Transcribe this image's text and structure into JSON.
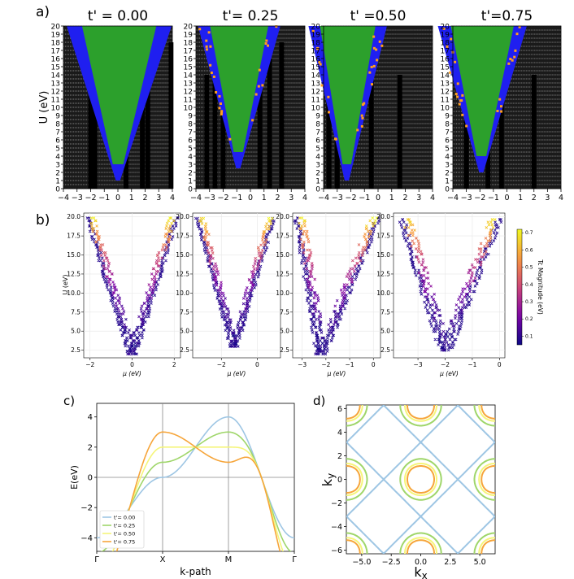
{
  "panel_labels": {
    "a": "a)",
    "b": "b)",
    "c": "c)",
    "d": "d)"
  },
  "colors": {
    "a_background": "#1a1a1a",
    "a_dot": "#8c8c8c",
    "a_green": "#2ca02c",
    "a_blue": "#1f1ff0",
    "a_orange": "#ff9f1c",
    "a_black": "#000000",
    "band_00": "#9ec6e4",
    "band_25": "#9fd66a",
    "band_50": "#f5f57a",
    "band_75": "#f6a53a"
  },
  "chart_data": [
    {
      "id": "a",
      "type": "heatmap",
      "ylabel": "U (eV)",
      "x_ticks": [
        "−4",
        "−3",
        "−2",
        "−1",
        "0",
        "1",
        "2",
        "3",
        "4"
      ],
      "y_ticks": [
        "0",
        "1",
        "2",
        "3",
        "4",
        "5",
        "6",
        "7",
        "8",
        "9",
        "10",
        "11",
        "12",
        "13",
        "14",
        "15",
        "16",
        "17",
        "18",
        "19",
        "20"
      ],
      "xlim": [
        -4,
        4
      ],
      "ylim": [
        0,
        20
      ],
      "subplots": [
        {
          "title": "t' = 0.00",
          "tprime": 0.0,
          "center": 0.0,
          "slope": 0.19,
          "u0": 1.0,
          "black_cols": [
            -2.0,
            -1.7,
            0.6,
            1.8,
            2.2,
            3.9
          ]
        },
        {
          "title": "t'= 0.25",
          "tprime": 0.25,
          "center": -0.9,
          "slope": 0.16,
          "u0": 2.5,
          "black_cols": [
            -3.2,
            -2.6,
            -2.0,
            0.7,
            1.4,
            2.3
          ]
        },
        {
          "title": "t' =0.50",
          "tprime": 0.5,
          "center": -2.3,
          "slope": 0.14,
          "u0": 1.0,
          "black_cols": [
            -3.6,
            -3.0,
            -0.5,
            1.6
          ]
        },
        {
          "title": "t'=0.75",
          "tprime": 0.75,
          "center": -1.9,
          "slope": 0.17,
          "u0": 2.0,
          "black_cols": [
            -3.0,
            -1.4,
            -0.4,
            2.0
          ]
        }
      ]
    },
    {
      "id": "b",
      "type": "scatter",
      "ylabel": "U (eV)",
      "xlabel": "μ (eV)",
      "colorbar_label": "Tc Magnitude (eV)",
      "colorbar_ticks": [
        "0.1",
        "0.2",
        "0.3",
        "0.4",
        "0.5",
        "0.6",
        "0.7"
      ],
      "colorbar_range": [
        0.05,
        0.72
      ],
      "y_ticks": [
        "2.5",
        "5.0",
        "7.5",
        "10.0",
        "12.5",
        "15.0",
        "17.5",
        "20.0"
      ],
      "ylim": [
        1.5,
        20.5
      ],
      "subplots": [
        {
          "xlim": [
            -2.3,
            2.3
          ],
          "x_ticks": [
            -2,
            0,
            2
          ],
          "x_tick_labels": [
            "−2",
            "0",
            "2"
          ],
          "left_min": -2.0,
          "right_max": 2.0,
          "center": 0.0,
          "u_min": 2.0
        },
        {
          "xlim": [
            -3.6,
            1.3
          ],
          "x_ticks": [
            -2,
            0
          ],
          "x_tick_labels": [
            "−2",
            "0"
          ],
          "left_min": -3.2,
          "right_max": 0.8,
          "center": -1.3,
          "u_min": 3.0
        },
        {
          "xlim": [
            -3.4,
            0.3
          ],
          "x_ticks": [
            -3,
            -2,
            -1,
            0
          ],
          "x_tick_labels": [
            "−3",
            "−2",
            "−1",
            "0"
          ],
          "left_min": -3.1,
          "right_max": 0.1,
          "center": -2.2,
          "u_min": 2.0
        },
        {
          "xlim": [
            -3.9,
            0.2
          ],
          "x_ticks": [
            -3,
            -2,
            -1,
            0
          ],
          "x_tick_labels": [
            "−3",
            "−2",
            "−1",
            "0"
          ],
          "left_min": -3.5,
          "right_max": -0.1,
          "center": -2.0,
          "u_min": 2.5
        }
      ]
    },
    {
      "id": "c",
      "type": "line",
      "ylabel": "E(eV)",
      "xlabel": "k-path",
      "x_tick_labels": [
        "Γ",
        "X",
        "M",
        "Γ"
      ],
      "y_ticks": [
        -4,
        -2,
        0,
        2,
        4
      ],
      "y_tick_labels": [
        "−4",
        "−2",
        "0",
        "2",
        "4"
      ],
      "ylim": [
        -4.9,
        4.9
      ],
      "series": [
        {
          "name": "t'= 0.00",
          "tprime": 0.0
        },
        {
          "name": "t'= 0.25",
          "tprime": 0.25
        },
        {
          "name": "t'= 0.50",
          "tprime": 0.5
        },
        {
          "name": "t'= 0.75",
          "tprime": 0.75
        }
      ],
      "legend": "lower-left"
    },
    {
      "id": "d",
      "type": "line",
      "xlabel": "kx",
      "ylabel": "ky",
      "x_ticks": [
        -5,
        -2.5,
        0,
        2.5,
        5
      ],
      "x_tick_labels": [
        "−5.0",
        "−2.5",
        "0.0",
        "2.5",
        "5.0"
      ],
      "y_ticks": [
        -6,
        -4,
        -2,
        0,
        2,
        4,
        6
      ],
      "y_tick_labels": [
        "−6",
        "−4",
        "−2",
        "0",
        "2",
        "4",
        "6"
      ],
      "xlim": [
        -6.3,
        6.3
      ],
      "ylim": [
        -6.3,
        6.3
      ],
      "contours": [
        {
          "tprime": 0.0,
          "level": 0.0
        },
        {
          "tprime": 0.25,
          "level": -1.5
        },
        {
          "tprime": 0.5,
          "level": -2.9
        },
        {
          "tprime": 0.75,
          "level": -4.1
        }
      ]
    }
  ]
}
